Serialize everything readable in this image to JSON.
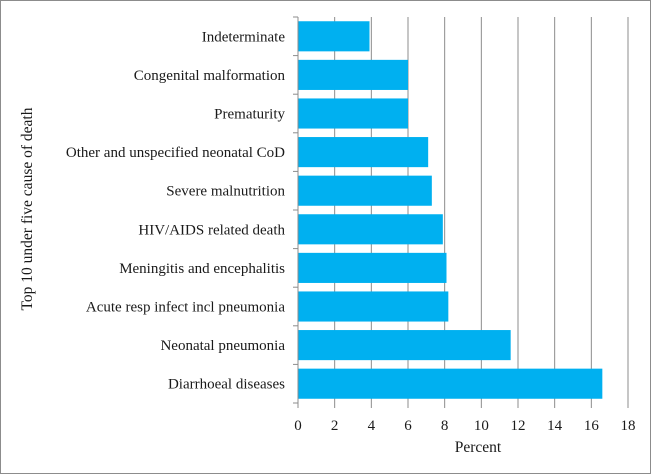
{
  "chart_data": {
    "type": "bar",
    "orientation": "horizontal",
    "title": "",
    "xlabel": "Percent",
    "ylabel": "Top 10 under five cause of death",
    "xlim": [
      0,
      18
    ],
    "xticks": [
      0,
      2,
      4,
      6,
      8,
      10,
      12,
      14,
      16,
      18
    ],
    "grid": "vertical",
    "bar_color": "#00b0f0",
    "categories": [
      "Indeterminate",
      "Congenital malformation",
      "Prematurity",
      "Other and unspecified neonatal CoD",
      "Severe malnutrition",
      "HIV/AIDS related death",
      "Meningitis and encephalitis",
      "Acute resp infect incl pneumonia",
      "Neonatal pneumonia",
      "Diarrhoeal diseases"
    ],
    "values": [
      3.9,
      6.0,
      6.0,
      7.1,
      7.3,
      7.9,
      8.1,
      8.2,
      11.6,
      16.6
    ]
  }
}
